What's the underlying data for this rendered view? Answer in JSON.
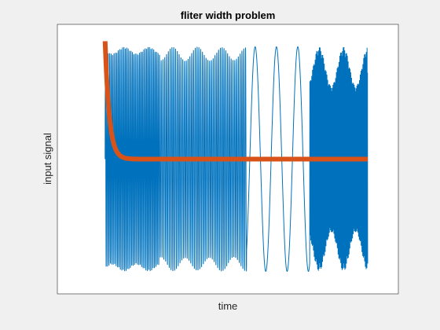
{
  "chart_data": {
    "type": "line",
    "title": "fliter width problem",
    "xlabel": "time",
    "ylabel": "input signal",
    "xlim": [
      0,
      1
    ],
    "ylim": [
      -1.2,
      1.2
    ],
    "grid": false,
    "legend": "none",
    "xticks_visible": false,
    "yticks_visible": false,
    "series": [
      {
        "role": "input",
        "color": "#0072bd",
        "x_start": 0.14,
        "x_end": 0.91,
        "amplitude": 1,
        "segments": [
          {
            "x_from": 0.14,
            "x_to": 0.3,
            "cycles_per_unit": 240,
            "envelope_ripple": 0.06
          },
          {
            "x_from": 0.3,
            "x_to": 0.555,
            "cycles_per_unit": 190,
            "envelope_ripple": 0.12
          },
          {
            "x_from": 0.555,
            "x_to": 0.74,
            "cycles_per_unit": 16,
            "envelope_ripple": 0.0
          },
          {
            "x_from": 0.74,
            "x_to": 0.91,
            "cycles_per_unit": 900,
            "envelope_ripple": 0.35
          }
        ]
      },
      {
        "role": "filter output",
        "color": "#d95319",
        "x_start": 0.14,
        "x_end": 0.91,
        "start_value": 1.05,
        "final_value": 0.0,
        "settle_at": 0.19
      }
    ]
  }
}
